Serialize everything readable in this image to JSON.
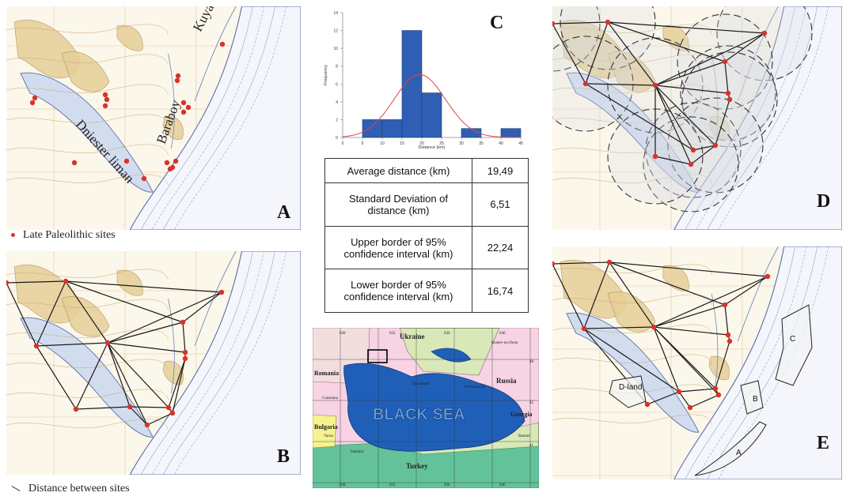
{
  "panels": {
    "a": {
      "label": "A",
      "kuyalnik": "Kuyalnik",
      "baraboy": "Baraboy",
      "dniester": "Dniester liman"
    },
    "b": {
      "label": "B"
    },
    "c": {
      "label": "C"
    },
    "d": {
      "label": "D"
    },
    "e": {
      "label": "E",
      "zones": [
        "D-land",
        "C",
        "B",
        "A"
      ]
    }
  },
  "legend": {
    "sites": "Late Paleolithic sites",
    "distance": "Distance between sites"
  },
  "stats_table": [
    {
      "label": "Average distance (km)",
      "value": "19,49"
    },
    {
      "label": "Standard Deviation of distance (km)",
      "value": "6,51"
    },
    {
      "label": "Upper border of 95% confidence interval (km)",
      "value": "22,24"
    },
    {
      "label": "Lower border of 95% confidence interval (km)",
      "value": "16,74"
    }
  ],
  "chart_data": {
    "type": "bar",
    "xlabel": "Distance (km)",
    "ylabel": "Frequency",
    "bin_edges": [
      5,
      10,
      15,
      20,
      25,
      30,
      35,
      40,
      45
    ],
    "values": [
      2,
      2,
      12,
      5,
      0,
      1,
      0,
      1
    ],
    "x_ticks": [
      0,
      5,
      10,
      15,
      20,
      25,
      30,
      35,
      40,
      45
    ],
    "y_ticks": [
      0,
      2,
      4,
      6,
      8,
      10,
      12,
      14
    ],
    "xlim": [
      0,
      45
    ],
    "ylim": [
      0,
      14
    ],
    "normal_fit": {
      "mean": 19.49,
      "sd": 6.51
    },
    "colors": {
      "bar": "#2e5fb4",
      "curve": "#e0453d"
    }
  },
  "black_sea_map": {
    "sea": "BLACK SEA",
    "countries": [
      "Ukraine",
      "Russia",
      "Romania",
      "Bulgaria",
      "Georgia",
      "Turkey"
    ],
    "cities": [
      "Rostov-na-Donu",
      "Constanta",
      "Sevastopol",
      "Novorossijsk",
      "Varna",
      "Istanbul",
      "Batumi"
    ],
    "grid_labels": [
      "028",
      "032",
      "036",
      "040",
      "044",
      "48",
      "45",
      "41",
      "028",
      "032",
      "036",
      "040"
    ]
  },
  "colors": {
    "site": "#d8322a",
    "land": "#e6cf98",
    "water": "#d2dcef",
    "contour": "#8aa4d6",
    "sea": "#1f5fb7"
  }
}
